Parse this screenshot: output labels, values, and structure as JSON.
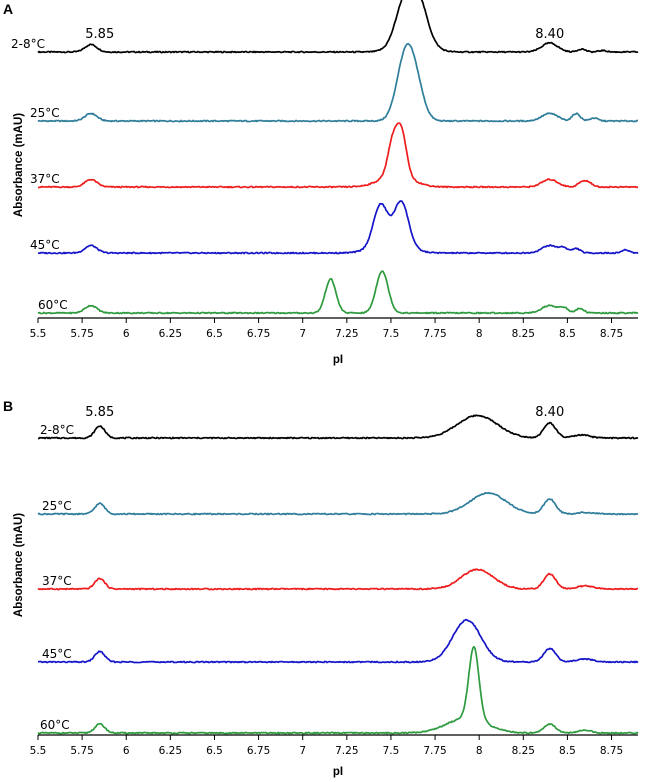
{
  "chart_data": [
    {
      "type": "line",
      "panel": "A",
      "xlabel": "pI",
      "ylabel": "Absorbance (mAU)",
      "xlim": [
        5.5,
        8.9
      ],
      "xticks": [
        5.5,
        5.75,
        6,
        6.25,
        6.5,
        6.75,
        7,
        7.25,
        7.5,
        7.75,
        8,
        8.25,
        8.5,
        8.75
      ],
      "tick_labels": [
        "5.5",
        "5.75",
        "6",
        "6.25",
        "6.5",
        "6.75",
        "7",
        "7.25",
        "7.5",
        "7.75",
        "8",
        "8.25",
        "8.5",
        "8.75"
      ],
      "annotations": [
        {
          "text": "5.85",
          "x": 5.85
        },
        {
          "text": "8.40",
          "x": 8.4
        }
      ],
      "series": [
        {
          "name": "2-8°C",
          "color": "#000000",
          "peaks": [
            [
              5.8,
              0.05,
              6
            ],
            [
              7.57,
              0.15,
              8
            ],
            [
              7.62,
              0.26,
              13
            ],
            [
              7.66,
              0.15,
              8
            ],
            [
              8.4,
              0.06,
              8
            ],
            [
              8.58,
              0.02,
              4
            ],
            [
              8.7,
              0.01,
              4
            ]
          ]
        },
        {
          "name": "25°C",
          "color": "#2e7d9a",
          "peaks": [
            [
              5.8,
              0.05,
              6
            ],
            [
              7.56,
              0.16,
              8
            ],
            [
              7.59,
              0.26,
              8
            ],
            [
              7.64,
              0.22,
              8
            ],
            [
              8.4,
              0.05,
              8
            ],
            [
              8.55,
              0.05,
              4
            ],
            [
              8.65,
              0.02,
              4
            ]
          ]
        },
        {
          "name": "37°C",
          "color": "#ee1c1c",
          "peaks": [
            [
              5.8,
              0.05,
              6
            ],
            [
              7.51,
              0.22,
              5
            ],
            [
              7.56,
              0.28,
              5
            ],
            [
              7.53,
              0.08,
              16
            ],
            [
              8.4,
              0.05,
              8
            ],
            [
              8.58,
              0.03,
              4
            ],
            [
              8.62,
              0.03,
              4
            ]
          ]
        },
        {
          "name": "45°C",
          "color": "#1414c8",
          "peaks": [
            [
              5.8,
              0.05,
              6
            ],
            [
              7.44,
              0.26,
              7
            ],
            [
              7.56,
              0.28,
              7
            ],
            [
              7.5,
              0.08,
              16
            ],
            [
              8.4,
              0.05,
              8
            ],
            [
              8.48,
              0.03,
              4
            ],
            [
              8.55,
              0.03,
              4
            ],
            [
              8.83,
              0.02,
              4
            ]
          ]
        },
        {
          "name": "60°C",
          "color": "#2e9a3e",
          "peaks": [
            [
              5.8,
              0.05,
              6
            ],
            [
              7.15,
              0.14,
              5
            ],
            [
              7.17,
              0.1,
              5
            ],
            [
              7.45,
              0.28,
              6
            ],
            [
              8.4,
              0.05,
              8
            ],
            [
              8.48,
              0.03,
              4
            ],
            [
              8.57,
              0.03,
              4
            ]
          ]
        }
      ]
    },
    {
      "type": "line",
      "panel": "B",
      "xlabel": "pI",
      "ylabel": "Absorbance (mAU)",
      "xlim": [
        5.5,
        8.9
      ],
      "xticks": [
        5.5,
        5.75,
        6,
        6.25,
        6.5,
        6.75,
        7,
        7.25,
        7.5,
        7.75,
        8,
        8.25,
        8.5,
        8.75
      ],
      "tick_labels": [
        "5.5",
        "5.75",
        "6",
        "6.25",
        "6.5",
        "6.75",
        "7",
        "7.25",
        "7.5",
        "7.75",
        "8",
        "8.25",
        "8.5",
        "8.75"
      ],
      "annotations": [
        {
          "text": "5.85",
          "x": 5.85
        },
        {
          "text": "8.40",
          "x": 8.4
        }
      ],
      "series": [
        {
          "name": "2-8°C",
          "color": "#000000",
          "peaks": [
            [
              5.85,
              0.08,
              5
            ],
            [
              7.99,
              0.15,
              20
            ],
            [
              8.4,
              0.1,
              6
            ],
            [
              8.58,
              0.02,
              8
            ]
          ]
        },
        {
          "name": "25°C",
          "color": "#2e7d9a",
          "peaks": [
            [
              5.85,
              0.07,
              5
            ],
            [
              8.05,
              0.14,
              18
            ],
            [
              8.4,
              0.1,
              6
            ],
            [
              8.6,
              0.01,
              8
            ]
          ]
        },
        {
          "name": "37°C",
          "color": "#ee1c1c",
          "peaks": [
            [
              5.85,
              0.07,
              5
            ],
            [
              7.99,
              0.13,
              16
            ],
            [
              8.4,
              0.1,
              6
            ],
            [
              8.6,
              0.02,
              8
            ]
          ]
        },
        {
          "name": "45°C",
          "color": "#1414c8",
          "peaks": [
            [
              5.85,
              0.07,
              5
            ],
            [
              7.93,
              0.28,
              14
            ],
            [
              8.4,
              0.09,
              6
            ],
            [
              8.6,
              0.02,
              8
            ]
          ]
        },
        {
          "name": "60°C",
          "color": "#2e9a3e",
          "peaks": [
            [
              5.85,
              0.06,
              5
            ],
            [
              7.93,
              0.1,
              20
            ],
            [
              7.97,
              0.48,
              5
            ],
            [
              8.4,
              0.06,
              6
            ],
            [
              8.6,
              0.02,
              6
            ]
          ]
        }
      ]
    }
  ]
}
